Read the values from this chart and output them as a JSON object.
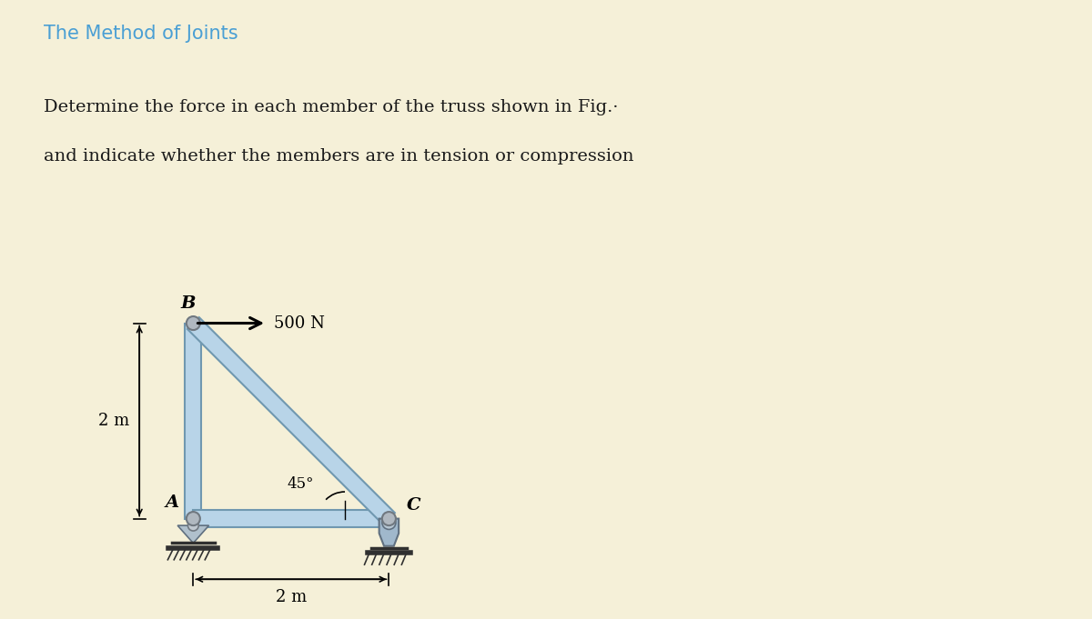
{
  "bg_color": "#f5f0d8",
  "title": "The Method of Joints",
  "title_color": "#4a9fd4",
  "title_fontsize": 15,
  "problem_text_line1": "Determine the force in each member of the truss shown in Fig.·",
  "problem_text_line2": "and indicate whether the members are in tension or compression",
  "text_color": "#1a1a1a",
  "text_fontsize": 14,
  "member_color": "#b8d4e8",
  "member_edge_color": "#7098b0",
  "joint_color": "#a0a0a0",
  "label_A": "A",
  "label_B": "B",
  "label_C": "C",
  "force_magnitude": "500 N",
  "angle_label": "45°",
  "dim_horizontal": "2 m",
  "dim_vertical": "2 m",
  "A": [
    0.0,
    0.0
  ],
  "B": [
    0.0,
    2.0
  ],
  "C": [
    2.0,
    0.0
  ]
}
